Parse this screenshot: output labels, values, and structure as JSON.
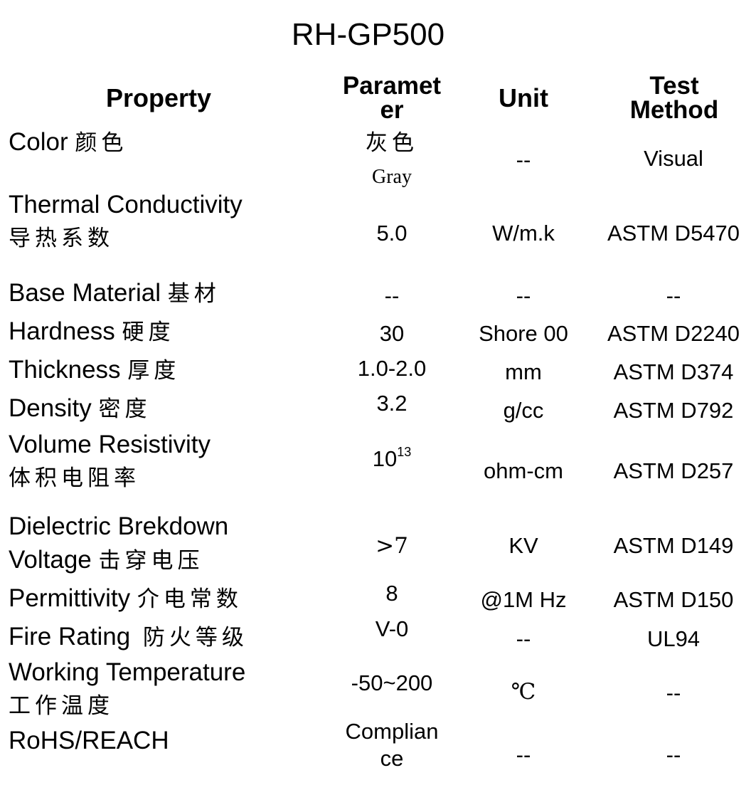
{
  "title": "RH-GP500",
  "headers": {
    "property": "Property",
    "parameter_l1": "Paramet",
    "parameter_l2": "er",
    "unit": "Unit",
    "test_l1": "Test",
    "test_l2": "Method"
  },
  "rows": [
    {
      "en": "Color",
      "cn": "颜色",
      "param_cn": "灰色",
      "param_en": "Gray",
      "unit": "--",
      "method": "Visual"
    },
    {
      "en": "Thermal Conductivity",
      "cn": "导热系数",
      "param": "5.0",
      "unit": "W/m.k",
      "method": "ASTM D5470"
    },
    {
      "en": "Base Material",
      "cn": "基材",
      "param": "--",
      "unit": "--",
      "method": "--"
    },
    {
      "en": "Hardness",
      "cn": "硬度",
      "param": "30",
      "unit": "Shore 00",
      "method": "ASTM D2240"
    },
    {
      "en": "Thickness",
      "cn": "厚度",
      "param": "1.0-2.0",
      "unit": "mm",
      "method": "ASTM D374"
    },
    {
      "en": "Density",
      "cn": "密度",
      "param": "3.2",
      "unit": "g/cc",
      "method": "ASTM D792"
    },
    {
      "en": "Volume Resistivity",
      "cn": "体积电阻率",
      "param_base": "10",
      "param_exp": "13",
      "unit": "ohm-cm",
      "method": "ASTM D257"
    },
    {
      "en_l1": "Dielectric Brekdown",
      "en_l2": "Voltage",
      "cn": "击穿电压",
      "param": ">7",
      "unit": "KV",
      "method": "ASTM D149"
    },
    {
      "en": "Permittivity",
      "cn": "介电常数",
      "param": "8",
      "unit": "@1M Hz",
      "method": "ASTM D150"
    },
    {
      "en": "Fire Rating",
      "cn": "防火等级",
      "param": "V-0",
      "unit": "--",
      "method": "UL94"
    },
    {
      "en": "Working Temperature",
      "cn": "工作温度",
      "param": "-50~200",
      "unit": "℃",
      "method": "--"
    },
    {
      "en": "RoHS/REACH",
      "param_l1": "Complian",
      "param_l2": "ce",
      "unit": "--",
      "method": "--"
    }
  ]
}
